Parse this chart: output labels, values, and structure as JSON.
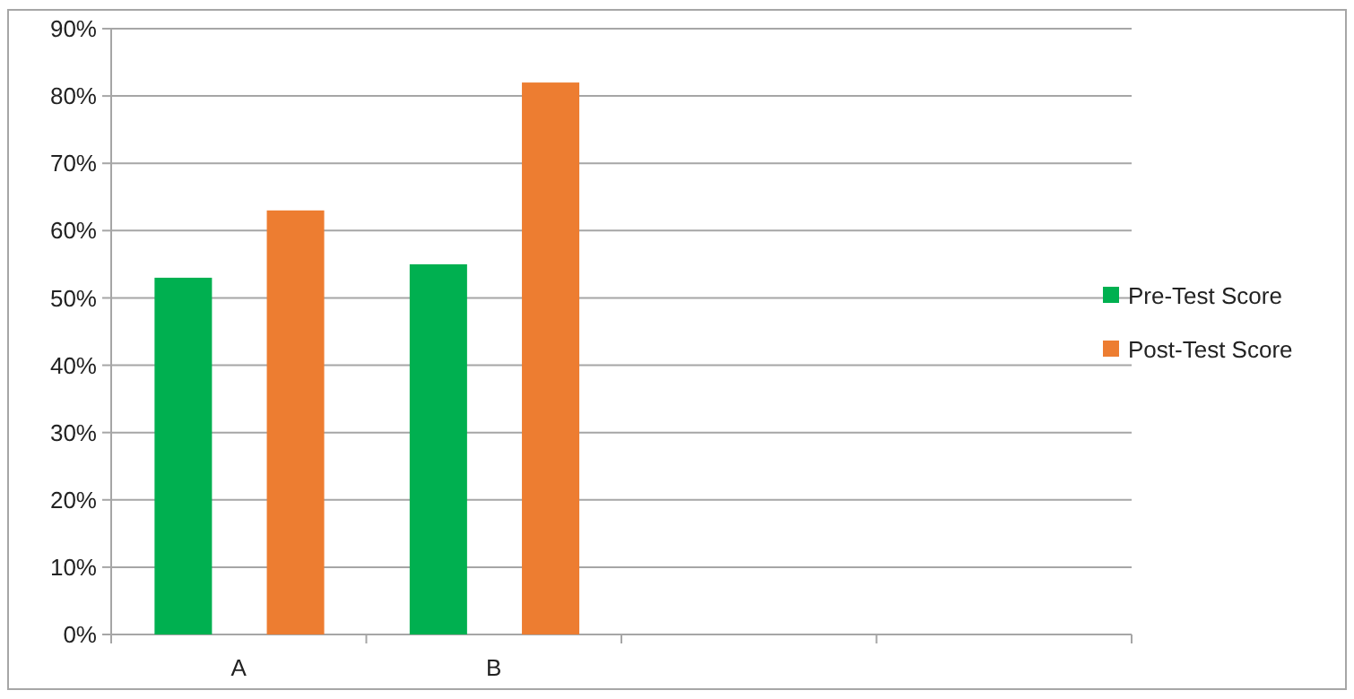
{
  "chart_data": {
    "type": "bar",
    "categories": [
      "A",
      "B",
      null,
      null
    ],
    "series": [
      {
        "name": "Pre-Test Score",
        "color": "#00b050",
        "values": [
          53,
          55,
          null,
          null
        ]
      },
      {
        "name": "Post-Test Score",
        "color": "#ed7d31",
        "values": [
          63,
          82,
          null,
          null
        ]
      }
    ],
    "ylim": [
      0,
      90
    ],
    "yticks": [
      {
        "value": 0,
        "label": "0%"
      },
      {
        "value": 10,
        "label": "10%"
      },
      {
        "value": 20,
        "label": "20%"
      },
      {
        "value": 30,
        "label": "30%"
      },
      {
        "value": 40,
        "label": "40%"
      },
      {
        "value": 50,
        "label": "50%"
      },
      {
        "value": 60,
        "label": "60%"
      },
      {
        "value": 70,
        "label": "70%"
      },
      {
        "value": 80,
        "label": "80%"
      },
      {
        "value": 90,
        "label": "90%"
      }
    ],
    "grid": "y",
    "legend": "right"
  }
}
